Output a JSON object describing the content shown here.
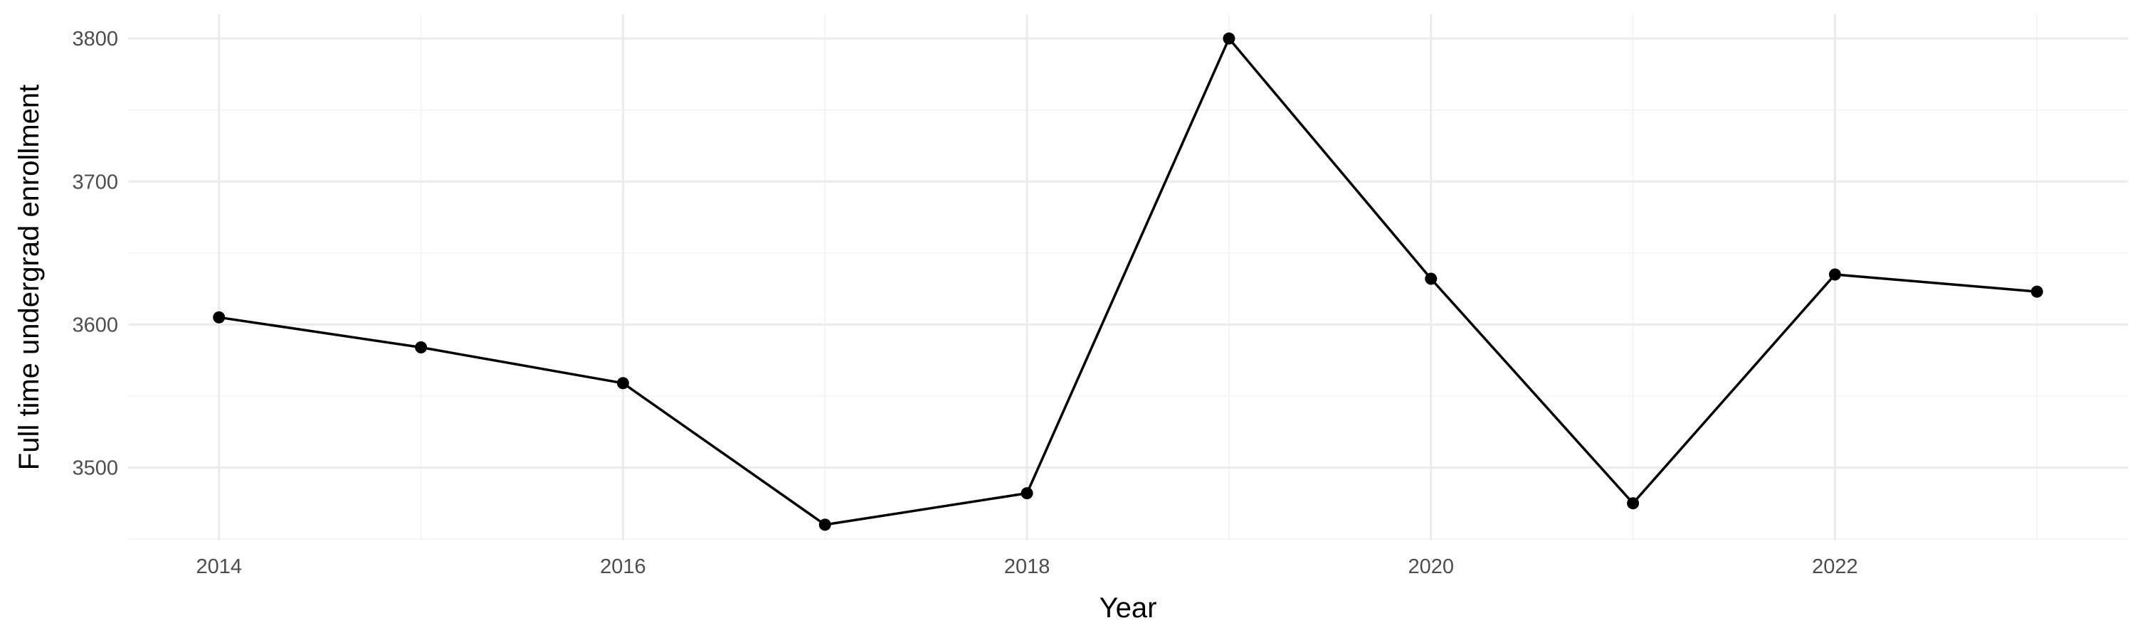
{
  "chart_data": {
    "type": "line",
    "xlabel": "Year",
    "ylabel": "Full time undergrad enrollment",
    "x": [
      2014,
      2015,
      2016,
      2017,
      2018,
      2019,
      2020,
      2021,
      2022,
      2023
    ],
    "series": [
      {
        "values": [
          3605,
          3584,
          3559,
          3460,
          3482,
          3800,
          3632,
          3475,
          3635,
          3623
        ]
      }
    ],
    "xlim": [
      2013.55,
      2023.45
    ],
    "ylim": [
      3449,
      3817
    ],
    "x_ticks": [
      2014,
      2016,
      2018,
      2020,
      2022
    ],
    "y_ticks": [
      3500,
      3600,
      3700,
      3800
    ],
    "grid": true,
    "colors": {
      "line": "#000000",
      "point": "#000000"
    }
  }
}
